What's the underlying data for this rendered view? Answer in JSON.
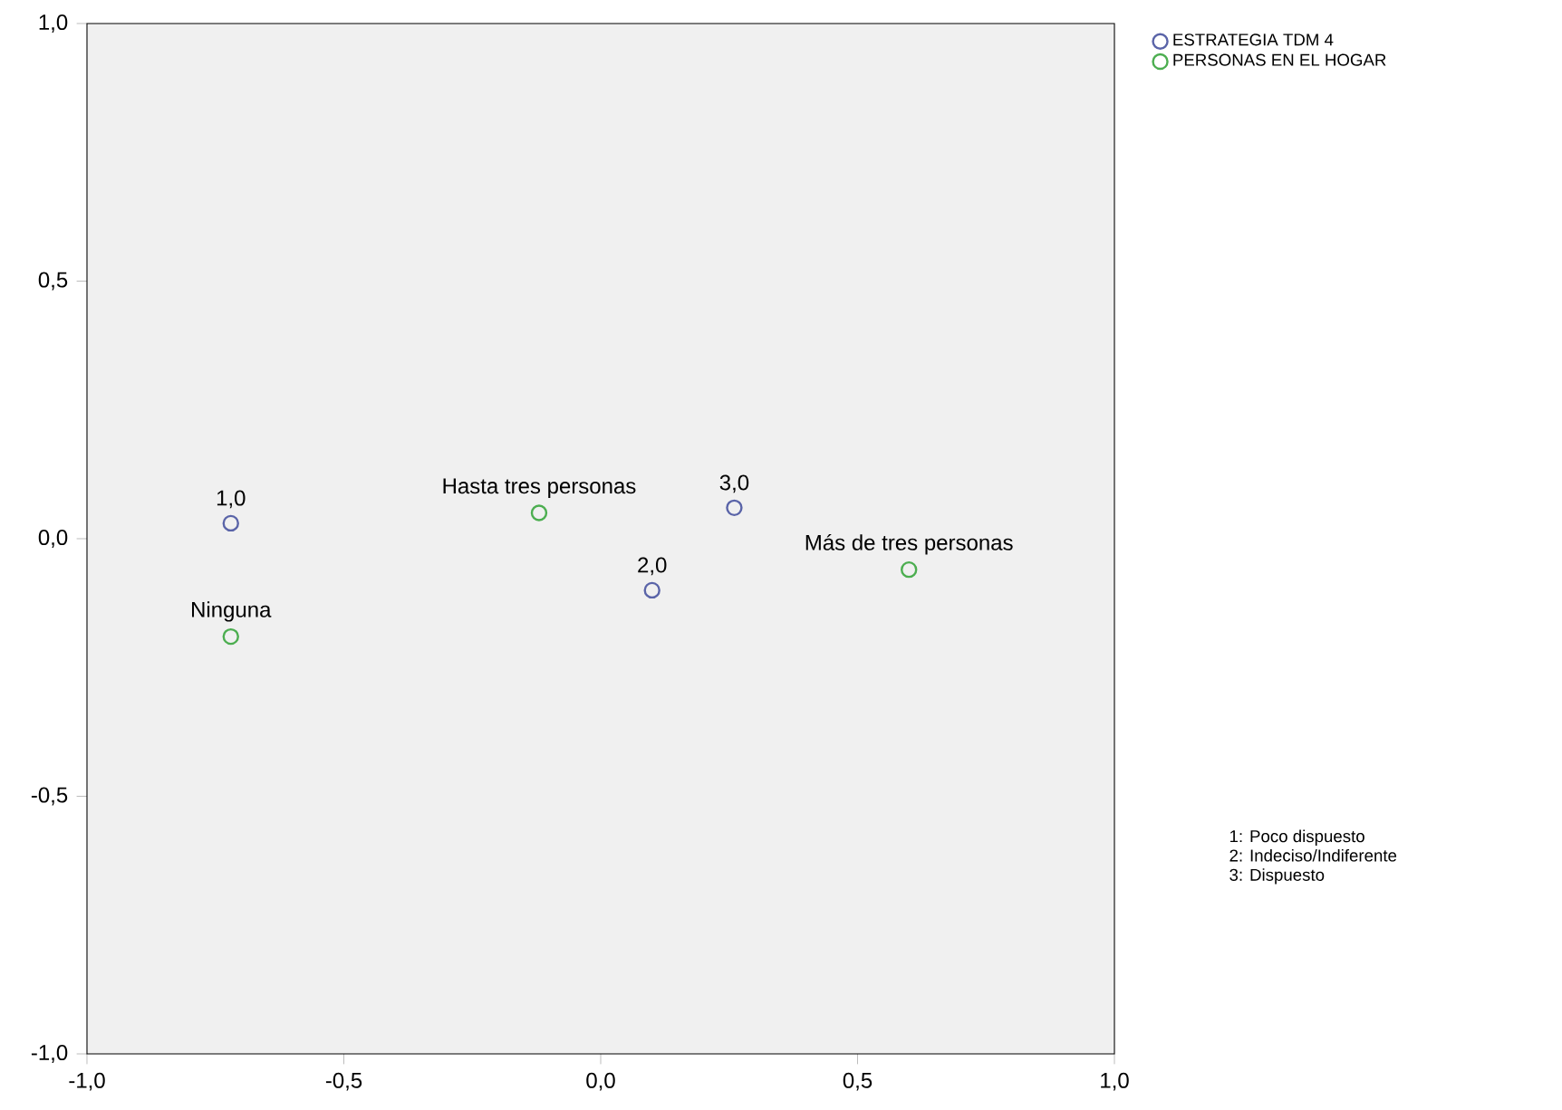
{
  "chart_data": {
    "type": "scatter",
    "marker": "circle",
    "legend": "top right",
    "series": [
      {
        "name": "ESTRATEGIA TDM 4",
        "color": "#5a64a8",
        "x": [
          -0.72,
          0.1,
          0.26
        ],
        "values": [
          0.03,
          -0.1,
          0.06
        ]
      },
      {
        "name": "PERSONAS EN EL HOGAR",
        "color": "#4cae50",
        "x": [
          -0.72,
          -0.12,
          0.6
        ],
        "values": [
          -0.19,
          0.05,
          -0.06
        ]
      }
    ],
    "xlim": [
      -1,
      1
    ],
    "ylim": [
      -1,
      1
    ],
    "xticks": [
      {
        "value": -1,
        "label": "-1,0"
      },
      {
        "value": -0.5,
        "label": "-0,5"
      },
      {
        "value": 0,
        "label": "0,0"
      },
      {
        "value": 0.5,
        "label": "0,5"
      },
      {
        "value": 1,
        "label": "1,0"
      }
    ],
    "yticks": [
      {
        "value": -1,
        "label": "-1,0"
      },
      {
        "value": -0.5,
        "label": "-0,5"
      },
      {
        "value": 0,
        "label": "0,0"
      },
      {
        "value": 0.5,
        "label": "0,5"
      },
      {
        "value": 1,
        "label": "1,0"
      }
    ],
    "annotations": [
      {
        "text": "1,0",
        "x": -0.72,
        "y": 0.03
      },
      {
        "text": "2,0",
        "x": 0.1,
        "y": -0.1
      },
      {
        "text": "3,0",
        "x": 0.26,
        "y": 0.06
      },
      {
        "text": "Ninguna",
        "x": -0.72,
        "y": -0.19
      },
      {
        "text": "Hasta tres personas",
        "x": -0.12,
        "y": 0.05
      },
      {
        "text": "Más de tres personas",
        "x": 0.6,
        "y": -0.06
      },
      "1: Poco dispuesto",
      "2: Indeciso/Indiferente",
      "3: Dispuesto"
    ]
  }
}
